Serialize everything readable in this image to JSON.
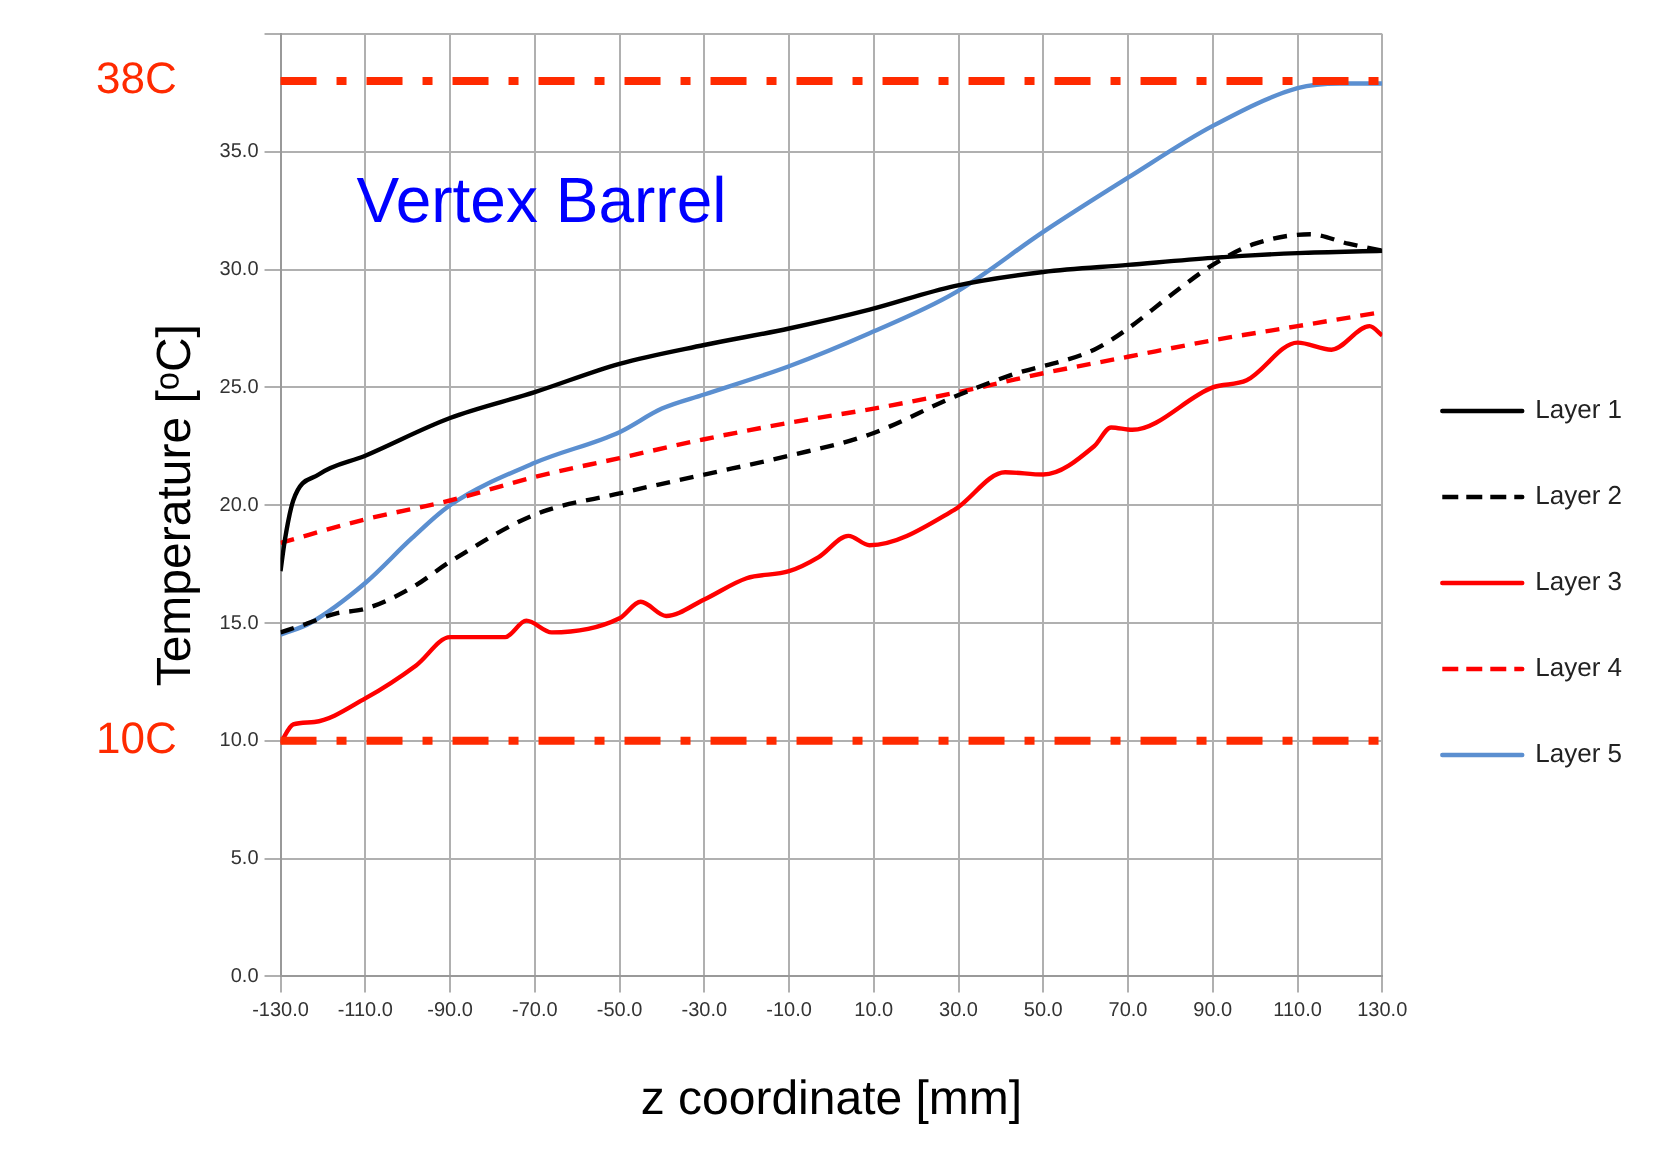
{
  "chart_data": {
    "type": "line",
    "xlabel": "z coordinate [mm]",
    "ylabel": "Temperature [ᵒC]",
    "annotations": [
      "Vertex Barrel"
    ],
    "series": [
      {
        "name": "Layer 1",
        "color": "#000000",
        "line_style": "solid",
        "x": [
          -130,
          -129,
          -127,
          -121,
          -110,
          -90,
          -70,
          -50,
          -30,
          -10,
          9,
          29,
          50,
          70,
          90,
          110,
          130
        ],
        "values": [
          17.2,
          18.5,
          20.2,
          21.3,
          22.1,
          23.7,
          24.8,
          26.0,
          26.8,
          27.5,
          28.3,
          29.3,
          29.9,
          30.2,
          30.5,
          30.7,
          30.8
        ]
      },
      {
        "name": "Layer 2",
        "color": "#000000",
        "line_style": "dashed",
        "x": [
          -130,
          -125,
          -117,
          -110,
          -99,
          -90,
          -70,
          -50,
          -30,
          -10,
          9,
          29,
          42,
          62,
          70,
          80,
          90,
          100,
          113,
          122,
          130
        ],
        "values": [
          14.6,
          14.9,
          15.4,
          15.6,
          16.5,
          17.6,
          19.6,
          20.5,
          21.3,
          22.1,
          23.0,
          24.6,
          25.5,
          26.6,
          27.5,
          28.9,
          30.2,
          31.1,
          31.5,
          31.1,
          30.8
        ]
      },
      {
        "name": "Layer 3",
        "color": "#ff0000",
        "line_style": "solid",
        "x": [
          -130,
          -127,
          -122,
          -110,
          -98,
          -90,
          -77,
          -72,
          -66,
          -50,
          -45,
          -39,
          -30,
          -20,
          -10,
          -3,
          4,
          9,
          29,
          41,
          50,
          62,
          66,
          71,
          90,
          98,
          110,
          118,
          127,
          130
        ],
        "values": [
          9.9,
          10.7,
          10.8,
          11.8,
          13.2,
          14.4,
          14.4,
          15.1,
          14.6,
          15.2,
          15.9,
          15.3,
          16.0,
          16.9,
          17.2,
          17.8,
          18.7,
          18.3,
          19.8,
          21.4,
          21.3,
          22.5,
          23.3,
          23.2,
          25.0,
          25.3,
          26.9,
          26.6,
          27.6,
          27.2
        ]
      },
      {
        "name": "Layer 4",
        "color": "#ff0000",
        "line_style": "dashed",
        "x": [
          -130,
          -110,
          -90,
          -70,
          -50,
          -30,
          -10,
          10,
          30,
          50,
          70,
          90,
          110,
          130
        ],
        "values": [
          18.4,
          19.4,
          20.2,
          21.2,
          22.0,
          22.8,
          23.5,
          24.1,
          24.8,
          25.6,
          26.3,
          27.0,
          27.6,
          28.2
        ]
      },
      {
        "name": "Layer 5",
        "color": "#5b8fd0",
        "line_style": "solid",
        "x": [
          -130,
          -123,
          -110,
          -99,
          -90,
          -70,
          -50,
          -40,
          -30,
          -10,
          9,
          29,
          50,
          70,
          90,
          110,
          120,
          130
        ],
        "values": [
          14.5,
          15.0,
          16.7,
          18.6,
          20.0,
          21.8,
          23.1,
          24.1,
          24.7,
          25.9,
          27.3,
          29.0,
          31.6,
          33.9,
          36.1,
          37.7,
          37.9,
          37.9
        ]
      }
    ],
    "ref_lines": [
      {
        "axis": "y",
        "value": 38,
        "label": "38C",
        "color": "#ff2a00",
        "line_style": "dashdot"
      },
      {
        "axis": "y",
        "value": 10,
        "label": "10C",
        "color": "#ff2a00",
        "line_style": "dashdot"
      }
    ],
    "xlim": [
      -130,
      130
    ],
    "xticks": [
      {
        "value": -130,
        "label": "-130.0"
      },
      {
        "value": -110,
        "label": "-110.0"
      },
      {
        "value": -90,
        "label": "-90.0"
      },
      {
        "value": -70,
        "label": "-70.0"
      },
      {
        "value": -50,
        "label": "-50.0"
      },
      {
        "value": -30,
        "label": "-30.0"
      },
      {
        "value": -10,
        "label": "-10.0"
      },
      {
        "value": 10,
        "label": "10.0"
      },
      {
        "value": 30,
        "label": "30.0"
      },
      {
        "value": 50,
        "label": "50.0"
      },
      {
        "value": 70,
        "label": "70.0"
      },
      {
        "value": 90,
        "label": "90.0"
      },
      {
        "value": 110,
        "label": "110.0"
      },
      {
        "value": 130,
        "label": "130.0"
      }
    ],
    "ylim": [
      0,
      40
    ],
    "yticks": [
      {
        "value": 0,
        "label": "0.0"
      },
      {
        "value": 5,
        "label": "5.0"
      },
      {
        "value": 10,
        "label": "10.0"
      },
      {
        "value": 15,
        "label": "15.0"
      },
      {
        "value": 20,
        "label": "20.0"
      },
      {
        "value": 25,
        "label": "25.0"
      },
      {
        "value": 30,
        "label": "30.0"
      },
      {
        "value": 35,
        "label": "35.0"
      },
      {
        "value": 40,
        "label": null
      }
    ],
    "grid": true,
    "legend": "right",
    "marker": "none"
  }
}
